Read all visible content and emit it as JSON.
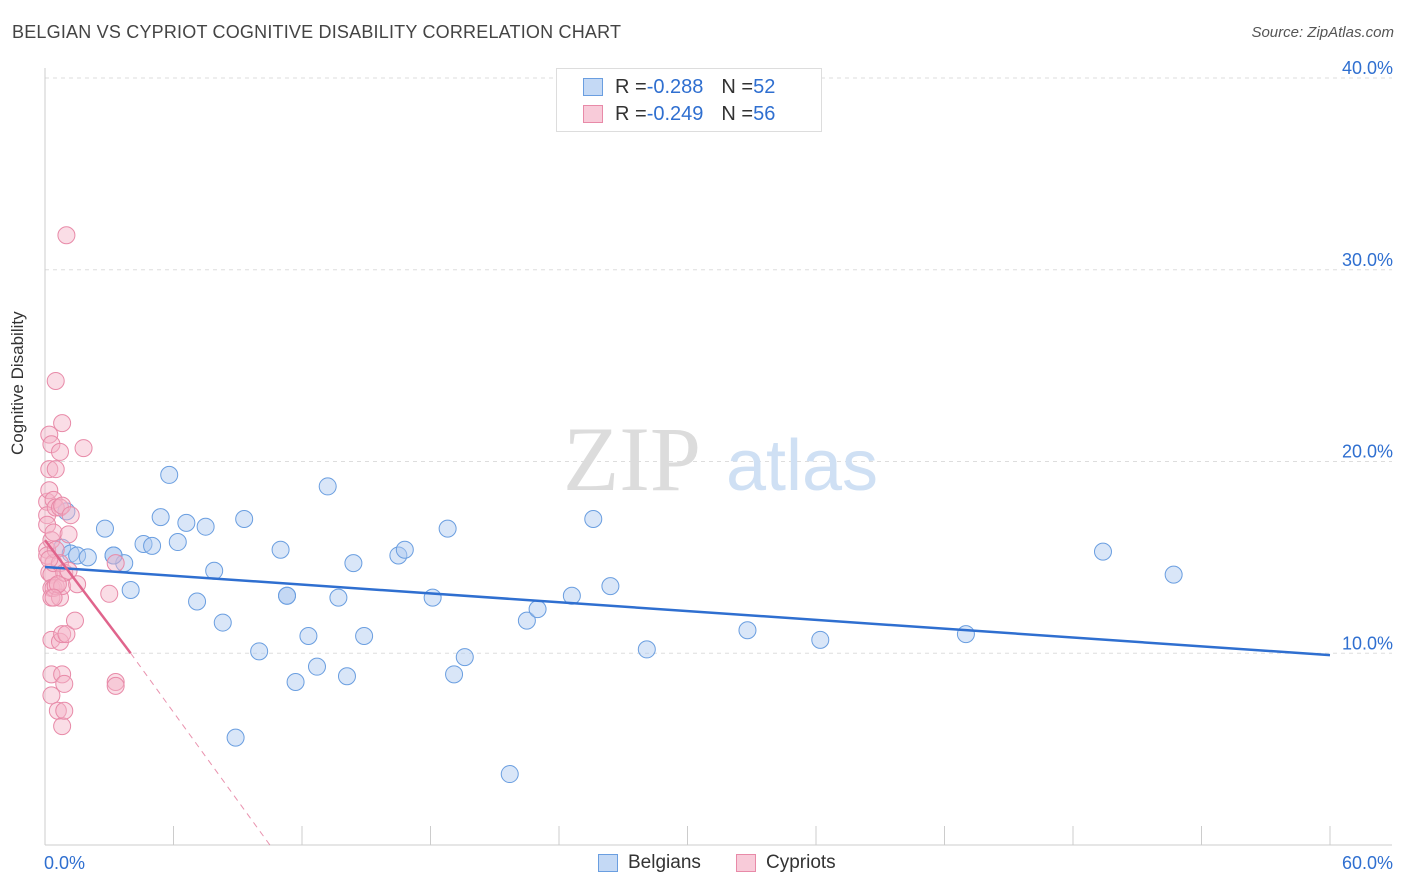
{
  "header": {
    "title": "BELGIAN VS CYPRIOT COGNITIVE DISABILITY CORRELATION CHART",
    "source": "Source: ZipAtlas.com"
  },
  "legend": {
    "belgians": {
      "r_label": "R = ",
      "r": "-0.288",
      "n_label": "N = ",
      "n": "52"
    },
    "cypriots": {
      "r_label": "R = ",
      "r": "-0.249",
      "n_label": "N = ",
      "n": "56"
    }
  },
  "bottom_legend": {
    "belgians": "Belgians",
    "cypriots": "Cypriots"
  },
  "watermark": {
    "zip": "ZIP",
    "atlas": "atlas"
  },
  "colors": {
    "blue_fill": "#aac8f0",
    "blue_stroke": "#6a9ee0",
    "blue_line": "#2f6fd0",
    "pink_fill": "#f5b4c8",
    "pink_stroke": "#e88aa8",
    "pink_line": "#e0648c",
    "axis_text": "#2f6fd0",
    "grid": "#dddddd"
  },
  "chart_data": {
    "type": "scatter",
    "title": "BELGIAN VS CYPRIOT COGNITIVE DISABILITY CORRELATION CHART",
    "xlabel": "",
    "ylabel": "Cognitive Disability",
    "xlim": [
      0,
      60
    ],
    "ylim": [
      0,
      40
    ],
    "x_tick_labels": [
      "0.0%",
      "60.0%"
    ],
    "y_ticks": [
      10,
      20,
      30,
      40
    ],
    "y_tick_labels": [
      "10.0%",
      "20.0%",
      "30.0%",
      "40.0%"
    ],
    "series": [
      {
        "name": "Belgians",
        "points": [
          [
            0.8,
            15.5
          ],
          [
            1.0,
            17.4
          ],
          [
            1.2,
            15.2
          ],
          [
            1.5,
            15.1
          ],
          [
            2.0,
            15.0
          ],
          [
            2.8,
            16.5
          ],
          [
            3.2,
            15.1
          ],
          [
            3.7,
            14.7
          ],
          [
            4.0,
            13.3
          ],
          [
            4.6,
            15.7
          ],
          [
            5.0,
            15.6
          ],
          [
            5.4,
            17.1
          ],
          [
            5.8,
            19.3
          ],
          [
            6.2,
            15.8
          ],
          [
            6.6,
            16.8
          ],
          [
            7.1,
            12.7
          ],
          [
            7.5,
            16.6
          ],
          [
            7.9,
            14.3
          ],
          [
            8.3,
            11.6
          ],
          [
            8.9,
            5.6
          ],
          [
            9.3,
            17.0
          ],
          [
            10.0,
            10.1
          ],
          [
            11.0,
            15.4
          ],
          [
            11.3,
            13.0
          ],
          [
            11.7,
            8.5
          ],
          [
            12.3,
            10.9
          ],
          [
            12.7,
            9.3
          ],
          [
            13.2,
            18.7
          ],
          [
            13.7,
            12.9
          ],
          [
            14.1,
            8.8
          ],
          [
            14.4,
            14.7
          ],
          [
            14.9,
            10.9
          ],
          [
            16.5,
            15.1
          ],
          [
            16.8,
            15.4
          ],
          [
            18.1,
            12.9
          ],
          [
            18.8,
            16.5
          ],
          [
            19.1,
            8.9
          ],
          [
            19.6,
            9.8
          ],
          [
            21.7,
            3.7
          ],
          [
            22.5,
            11.7
          ],
          [
            23.0,
            12.3
          ],
          [
            24.6,
            13.0
          ],
          [
            25.6,
            17.0
          ],
          [
            26.4,
            13.5
          ],
          [
            28.1,
            10.2
          ],
          [
            32.8,
            11.2
          ],
          [
            36.2,
            10.7
          ],
          [
            43.0,
            11.0
          ],
          [
            49.4,
            15.3
          ],
          [
            52.7,
            14.1
          ],
          [
            11.3,
            13.0
          ],
          [
            3.2,
            15.1
          ]
        ]
      },
      {
        "name": "Cypriots",
        "points": [
          [
            0.1,
            17.9
          ],
          [
            0.1,
            17.2
          ],
          [
            0.1,
            16.7
          ],
          [
            0.1,
            15.4
          ],
          [
            0.1,
            15.1
          ],
          [
            0.2,
            14.2
          ],
          [
            0.2,
            19.6
          ],
          [
            0.2,
            18.5
          ],
          [
            0.2,
            21.4
          ],
          [
            0.3,
            20.9
          ],
          [
            0.3,
            15.9
          ],
          [
            0.3,
            14.1
          ],
          [
            0.3,
            13.4
          ],
          [
            0.3,
            12.9
          ],
          [
            0.3,
            10.7
          ],
          [
            0.3,
            8.9
          ],
          [
            0.3,
            7.8
          ],
          [
            0.4,
            18.0
          ],
          [
            0.4,
            16.3
          ],
          [
            0.4,
            14.7
          ],
          [
            0.4,
            13.4
          ],
          [
            0.5,
            24.2
          ],
          [
            0.5,
            19.6
          ],
          [
            0.5,
            17.6
          ],
          [
            0.5,
            15.4
          ],
          [
            0.5,
            13.5
          ],
          [
            0.6,
            7.0
          ],
          [
            0.7,
            20.5
          ],
          [
            0.7,
            17.6
          ],
          [
            0.7,
            14.7
          ],
          [
            0.7,
            12.9
          ],
          [
            0.7,
            10.6
          ],
          [
            0.8,
            22.0
          ],
          [
            0.8,
            17.7
          ],
          [
            0.8,
            13.5
          ],
          [
            0.8,
            11.0
          ],
          [
            0.8,
            8.9
          ],
          [
            0.8,
            6.2
          ],
          [
            0.9,
            14.2
          ],
          [
            0.9,
            8.4
          ],
          [
            0.9,
            7.0
          ],
          [
            1.0,
            31.8
          ],
          [
            1.0,
            11.0
          ],
          [
            1.1,
            16.2
          ],
          [
            1.1,
            14.3
          ],
          [
            1.2,
            17.2
          ],
          [
            1.4,
            11.7
          ],
          [
            1.5,
            13.6
          ],
          [
            1.8,
            20.7
          ],
          [
            3.0,
            13.1
          ],
          [
            3.3,
            14.7
          ],
          [
            3.3,
            8.5
          ],
          [
            3.3,
            8.3
          ],
          [
            0.2,
            14.9
          ],
          [
            0.6,
            13.6
          ],
          [
            0.4,
            12.9
          ]
        ]
      }
    ],
    "trend_lines": [
      {
        "series": "Belgians",
        "x": [
          0,
          60
        ],
        "y": [
          14.5,
          9.9
        ]
      },
      {
        "series": "Cypriots",
        "x": [
          0,
          4.0
        ],
        "y": [
          15.9,
          10.0
        ],
        "dashed_extension_x": [
          4.0,
          10.5
        ],
        "dashed_extension_y": [
          10.0,
          0
        ]
      }
    ]
  }
}
